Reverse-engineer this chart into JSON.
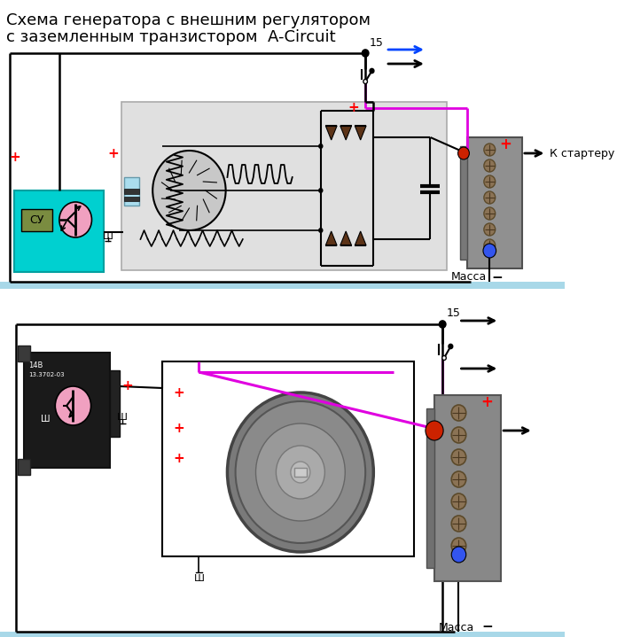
{
  "title_line1": "Схема генератора с внешним регулятором",
  "title_line2": "с заземленным транзистором  A-Circuit",
  "bg_color": "#ffffff",
  "label_massa": "Масса",
  "label_k_starteru": "К стартеру",
  "label_15": "15",
  "label_sh": "Ш",
  "label_cy": "СУ",
  "cyan_box": "#00d0d0",
  "ground_bar": "#a8d8e8"
}
